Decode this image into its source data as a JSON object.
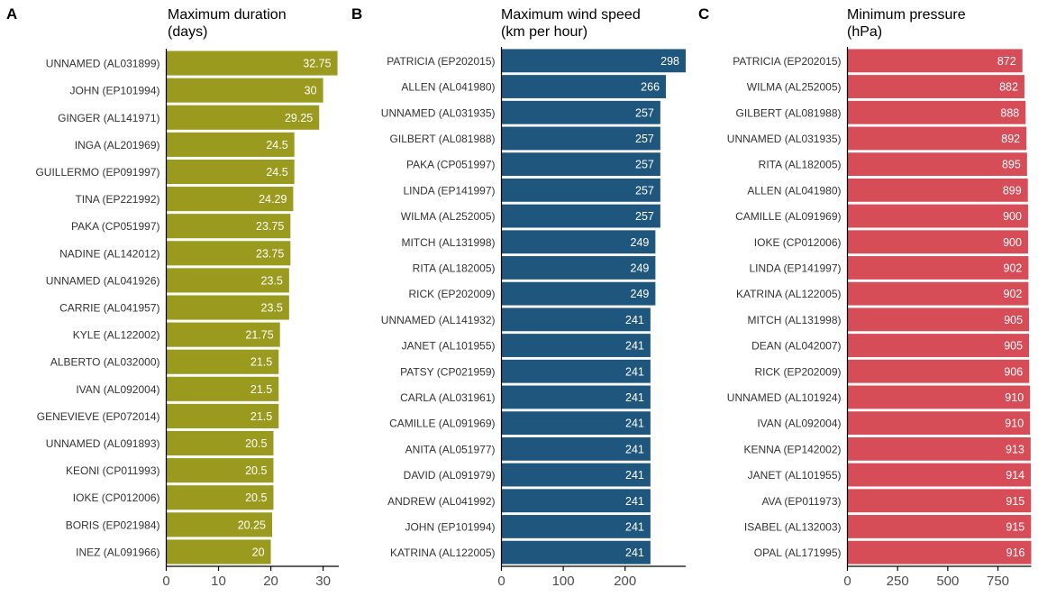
{
  "chart_data": [
    {
      "type": "bar",
      "orientation": "horizontal",
      "panel_label": "A",
      "title": "Maximum duration",
      "subtitle": "(days)",
      "color": "#9a9a1f",
      "xlim": [
        0,
        33
      ],
      "xticks": [
        0,
        10,
        20,
        30
      ],
      "categories": [
        "UNNAMED (AL031899)",
        "JOHN (EP101994)",
        "GINGER (AL141971)",
        "INGA (AL201969)",
        "GUILLERMO (EP091997)",
        "TINA (EP221992)",
        "PAKA (CP051997)",
        "NADINE (AL142012)",
        "UNNAMED (AL041926)",
        "CARRIE (AL041957)",
        "KYLE (AL122002)",
        "ALBERTO (AL032000)",
        "IVAN (AL092004)",
        "GENEVIEVE (EP072014)",
        "UNNAMED (AL091893)",
        "KEONI (CP011993)",
        "IOKE (CP012006)",
        "BORIS (EP021984)",
        "INEZ (AL091966)"
      ],
      "values": [
        32.75,
        30,
        29.25,
        24.5,
        24.5,
        24.29,
        23.75,
        23.75,
        23.5,
        23.5,
        21.75,
        21.5,
        21.5,
        21.5,
        20.5,
        20.5,
        20.5,
        20.25,
        20
      ],
      "labels": [
        "32.75",
        "30",
        "29.25",
        "24.5",
        "24.5",
        "24.29",
        "23.75",
        "23.75",
        "23.5",
        "23.5",
        "21.75",
        "21.5",
        "21.5",
        "21.5",
        "20.5",
        "20.5",
        "20.5",
        "20.25",
        "20"
      ],
      "grid": false
    },
    {
      "type": "bar",
      "orientation": "horizontal",
      "panel_label": "B",
      "title": "Maximum wind speed",
      "subtitle": "(km per hour)",
      "color": "#1f567d",
      "xlim": [
        0,
        298
      ],
      "xticks": [
        0,
        100,
        200
      ],
      "categories": [
        "PATRICIA (EP202015)",
        "ALLEN (AL041980)",
        "UNNAMED (AL031935)",
        "GILBERT (AL081988)",
        "PAKA (CP051997)",
        "LINDA (EP141997)",
        "WILMA (AL252005)",
        "MITCH (AL131998)",
        "RITA (AL182005)",
        "RICK (EP202009)",
        "UNNAMED (AL141932)",
        "JANET (AL101955)",
        "PATSY (CP021959)",
        "CARLA (AL031961)",
        "CAMILLE (AL091969)",
        "ANITA (AL051977)",
        "DAVID (AL091979)",
        "ANDREW (AL041992)",
        "JOHN (EP101994)",
        "KATRINA (AL122005)"
      ],
      "values": [
        298,
        266,
        257,
        257,
        257,
        257,
        257,
        249,
        249,
        249,
        241,
        241,
        241,
        241,
        241,
        241,
        241,
        241,
        241,
        241
      ],
      "labels": [
        "298",
        "266",
        "257",
        "257",
        "257",
        "257",
        "257",
        "249",
        "249",
        "249",
        "241",
        "241",
        "241",
        "241",
        "241",
        "241",
        "241",
        "241",
        "241",
        "241"
      ],
      "grid": false
    },
    {
      "type": "bar",
      "orientation": "horizontal",
      "panel_label": "C",
      "title": "Minimum pressure",
      "subtitle": "(hPa)",
      "color": "#d64c57",
      "xlim": [
        0,
        916
      ],
      "xticks": [
        0,
        250,
        500,
        750
      ],
      "categories": [
        "PATRICIA (EP202015)",
        "WILMA (AL252005)",
        "GILBERT (AL081988)",
        "UNNAMED (AL031935)",
        "RITA (AL182005)",
        "ALLEN (AL041980)",
        "CAMILLE (AL091969)",
        "IOKE (CP012006)",
        "LINDA (EP141997)",
        "KATRINA (AL122005)",
        "MITCH (AL131998)",
        "DEAN (AL042007)",
        "RICK (EP202009)",
        "UNNAMED (AL101924)",
        "IVAN (AL092004)",
        "KENNA (EP142002)",
        "JANET (AL101955)",
        "AVA (EP011973)",
        "ISABEL (AL132003)",
        "OPAL (AL171995)"
      ],
      "values": [
        872,
        882,
        888,
        892,
        895,
        899,
        900,
        900,
        902,
        902,
        905,
        905,
        906,
        910,
        910,
        913,
        914,
        915,
        915,
        916
      ],
      "labels": [
        "872",
        "882",
        "888",
        "892",
        "895",
        "899",
        "900",
        "900",
        "902",
        "902",
        "905",
        "905",
        "906",
        "910",
        "910",
        "913",
        "914",
        "915",
        "915",
        "916"
      ],
      "grid": false
    }
  ]
}
